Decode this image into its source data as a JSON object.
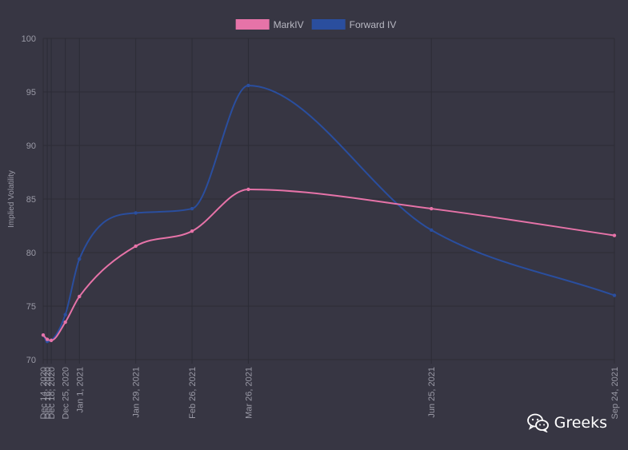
{
  "watermark": {
    "text": "Greeks",
    "icon": "wechat-icon"
  },
  "chart_data": {
    "type": "line",
    "title": "",
    "xlabel": "",
    "ylabel": "Implied Volatility",
    "ylim": [
      70,
      100
    ],
    "yticks": [
      70,
      75,
      80,
      85,
      90,
      95,
      100
    ],
    "grid": true,
    "legend_position": "top-center",
    "categories": [
      "Dec 14, 2020",
      "Dec 16, 2020",
      "Dec 18, 2020",
      "Dec 25, 2020",
      "Jan 1, 2021",
      "Jan 29, 2021",
      "Feb 26, 2021",
      "Mar 26, 2021",
      "Jun 25, 2021",
      "Sep 24, 2021"
    ],
    "x_days": [
      0,
      2,
      4,
      11,
      18,
      46,
      74,
      102,
      193,
      284
    ],
    "series": [
      {
        "name": "MarkIV",
        "color": "#e673a8",
        "values": [
          72.3,
          71.9,
          71.8,
          73.5,
          75.9,
          80.6,
          82.0,
          85.9,
          84.1,
          81.6
        ]
      },
      {
        "name": "Forward IV",
        "color": "#2a4e9e",
        "values": [
          72.3,
          71.7,
          71.8,
          74.2,
          79.4,
          83.7,
          84.1,
          95.6,
          82.1,
          76.0
        ]
      }
    ]
  }
}
